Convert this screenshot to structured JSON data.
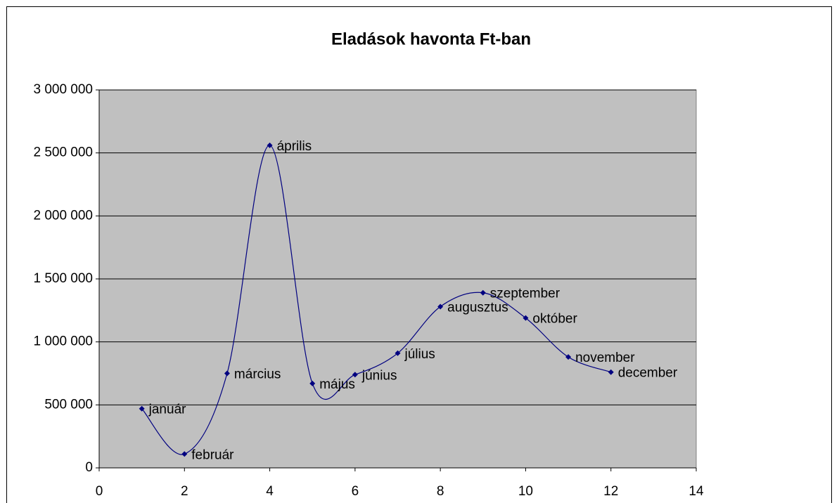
{
  "chart_data": {
    "type": "scatter_smooth",
    "title": "Eladások havonta Ft-ban",
    "x": [
      1,
      2,
      3,
      4,
      5,
      6,
      7,
      8,
      9,
      10,
      11,
      12
    ],
    "values": [
      470000,
      110000,
      750000,
      2560000,
      670000,
      740000,
      910000,
      1280000,
      1390000,
      1190000,
      880000,
      760000
    ],
    "labels": [
      "január",
      "február",
      "március",
      "április",
      "május",
      "június",
      "július",
      "augusztus",
      "szeptember",
      "október",
      "november",
      "december"
    ],
    "color": "#000080",
    "xlim": [
      0,
      14
    ],
    "xticks": [
      0,
      2,
      4,
      6,
      8,
      10,
      12,
      14
    ],
    "ylim": [
      0,
      3000000
    ],
    "yticks": [
      0,
      {
        "value": 500000,
        "label": "500 000"
      },
      {
        "value": 1000000,
        "label": "1 000 000"
      },
      {
        "value": 1500000,
        "label": "1 500 000"
      },
      {
        "value": 2000000,
        "label": "2 000 000"
      },
      {
        "value": 2500000,
        "label": "2 500 000"
      },
      {
        "value": 3000000,
        "label": "3 000 000"
      }
    ],
    "grid": true
  }
}
